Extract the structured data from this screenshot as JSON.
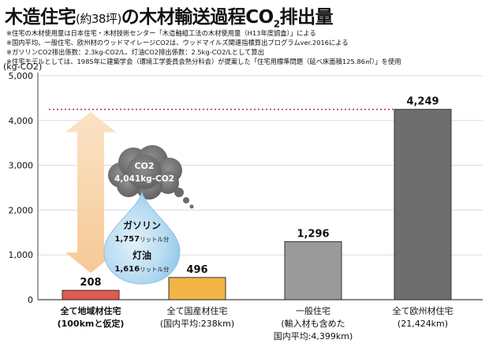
{
  "title": {
    "main": "木造住宅",
    "paren": "(約38坪)",
    "suffix": "の木材輸送過程CO",
    "sub": "2",
    "tail": "排出量"
  },
  "notes": [
    "※住宅の木材使用量は日本住宅・木材技術センター「木造軸組工法の木材使用量（H13年度調査）」による",
    "※国内平均、一般住宅、欧州材のウッドマイレージCO2は、ウッドマイルズ関連指標算出プログラムver.2016による",
    "※ガソリンCO2排出係数：2.3kg-CO2/L、灯油CO2排出係数：2.5kg-CO2/Lとして算出",
    "※住宅モデルとしては、1985年に建築学会（環境工学委員会熱分科会）が提案した「住宅用標準問題（延べ床面積125.86㎡）」を使用"
  ],
  "chart_data": {
    "type": "bar",
    "ylabel": "(kg-CO2)",
    "ylim": [
      0,
      5000
    ],
    "yticks": [
      0,
      1000,
      2000,
      3000,
      4000,
      5000
    ],
    "ytick_labels": [
      "0",
      "1,000",
      "2,000",
      "3,000",
      "4,000",
      "5,000"
    ],
    "grid": true,
    "categories": [
      {
        "lines": [
          "全て地域材住宅",
          "(100kmと仮定)"
        ],
        "bold": true
      },
      {
        "lines": [
          "全て国産材住宅",
          "(国内平均:238km)"
        ],
        "bold": false
      },
      {
        "lines": [
          "一般住宅",
          "(輸入材も含めた",
          "国内平均:4,399km)"
        ],
        "bold": false
      },
      {
        "lines": [
          "全て欧州材住宅",
          "(21,424km)"
        ],
        "bold": false
      }
    ],
    "values": [
      208,
      496,
      1296,
      4249
    ],
    "value_labels": [
      "208",
      "496",
      "1,296",
      "4,249"
    ],
    "bar_colors": [
      "#e05a4f",
      "#f2b347",
      "#9a9a9a",
      "#6e6e6e"
    ],
    "reference_line": {
      "value": 4249,
      "color": "#c0282f",
      "style": "dotted"
    },
    "annotation": {
      "difference_value": 4041,
      "cloud_lines": [
        "CO2",
        "4,041kg-CO2"
      ],
      "gasoline_label": "ガソリン",
      "gasoline_amount": "1,757",
      "kerosene_label": "灯油",
      "kerosene_amount": "1,616",
      "unit_suffix": "リットル分"
    }
  }
}
